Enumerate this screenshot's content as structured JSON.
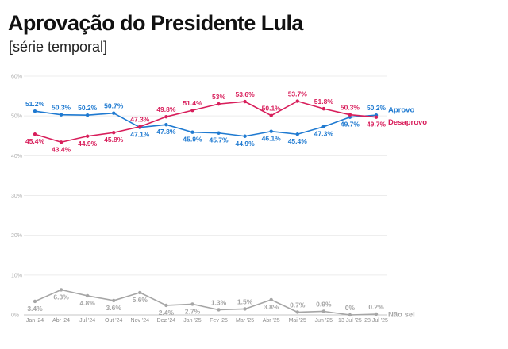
{
  "title": "Aprovação do Presidente Lula",
  "subtitle": "[série temporal]",
  "chart_data": {
    "type": "line",
    "title": "Aprovação do Presidente Lula",
    "subtitle": "[série temporal]",
    "x": [
      "Jan '24",
      "Abr '24",
      "Jul '24",
      "Out '24",
      "Nov '24",
      "Dez '24",
      "Jan '25",
      "Fev '25",
      "Mar '25",
      "Abr '25",
      "Mai '25",
      "Jun '25",
      "13 Jul '25",
      "28 Jul '25"
    ],
    "ylim": [
      0,
      60
    ],
    "yticks": [
      0,
      10,
      20,
      30,
      40,
      50,
      60
    ],
    "ytick_labels": [
      "0%",
      "10%",
      "20%",
      "30%",
      "40%",
      "50%",
      "60%"
    ],
    "grid": true,
    "legend": "right end of lines",
    "series": [
      {
        "name": "Aprovo",
        "color": "#1f7ad1",
        "values": [
          51.2,
          50.3,
          50.2,
          50.7,
          47.1,
          47.8,
          45.9,
          45.7,
          44.9,
          46.1,
          45.4,
          47.3,
          49.7,
          50.2
        ],
        "labels": [
          "51.2%",
          "50.3%",
          "50.2%",
          "50.7%",
          "47.1%",
          "47.8%",
          "45.9%",
          "45.7%",
          "44.9%",
          "46.1%",
          "45.4%",
          "47.3%",
          "49.7%",
          "50.2%"
        ],
        "label_pos": [
          "above",
          "above",
          "above",
          "above",
          "below",
          "below",
          "below",
          "below",
          "below",
          "below",
          "below",
          "below",
          "below",
          "above"
        ]
      },
      {
        "name": "Desaprovo",
        "color": "#d81e5b",
        "values": [
          45.4,
          43.4,
          44.9,
          45.8,
          47.3,
          49.8,
          51.4,
          53.0,
          53.6,
          50.1,
          53.7,
          51.8,
          50.3,
          49.7
        ],
        "labels": [
          "45.4%",
          "43.4%",
          "44.9%",
          "45.8%",
          "47.3%",
          "49.8%",
          "51.4%",
          "53%",
          "53.6%",
          "50.1%",
          "53.7%",
          "51.8%",
          "50.3%",
          "49.7%"
        ],
        "label_pos": [
          "below",
          "below",
          "below",
          "below",
          "above",
          "above",
          "above",
          "above",
          "above",
          "above",
          "above",
          "above",
          "above",
          "below"
        ]
      },
      {
        "name": "Não sei",
        "color": "#a6a6a6",
        "values": [
          3.4,
          6.3,
          4.8,
          3.6,
          5.6,
          2.4,
          2.7,
          1.3,
          1.5,
          3.8,
          0.7,
          0.9,
          0,
          0.2
        ],
        "labels": [
          "3.4%",
          "6.3%",
          "4.8%",
          "3.6%",
          "5.6%",
          "2.4%",
          "2.7%",
          "1.3%",
          "1.5%",
          "3.8%",
          "0.7%",
          "0.9%",
          "0%",
          "0.2%"
        ],
        "label_pos": [
          "below",
          "below",
          "below",
          "below",
          "below",
          "below",
          "below",
          "above",
          "above",
          "below",
          "above",
          "above",
          "above",
          "above"
        ]
      }
    ]
  }
}
